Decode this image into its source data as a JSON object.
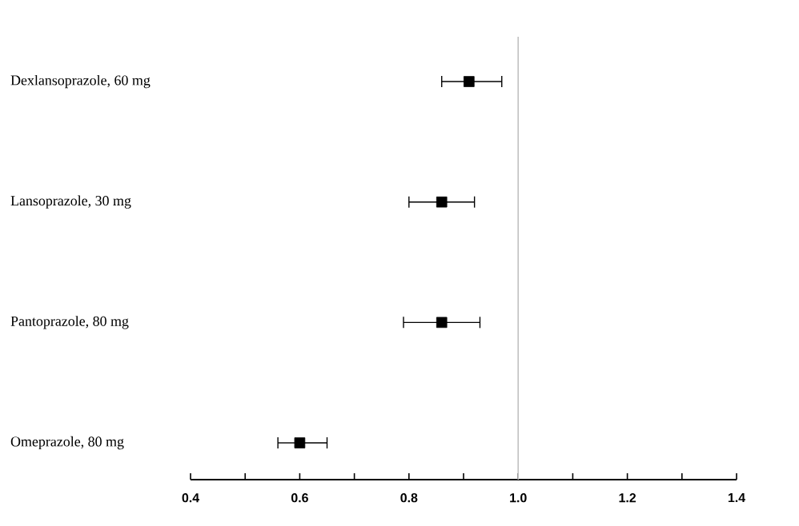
{
  "chart_data": {
    "type": "scatter",
    "orientation": "horizontal",
    "categories": [
      "Dexlansoprazole, 60 mg",
      "Lansoprazole, 30 mg",
      "Pantoprazole, 80 mg",
      "Omeprazole, 80 mg"
    ],
    "values": [
      0.91,
      0.86,
      0.86,
      0.6
    ],
    "errors": [
      [
        0.86,
        0.97
      ],
      [
        0.8,
        0.92
      ],
      [
        0.79,
        0.93
      ],
      [
        0.56,
        0.65
      ]
    ],
    "color": "#000000",
    "marker": "square",
    "xlim": [
      0.4,
      1.4
    ],
    "xticks": [
      0.4,
      {
        "value": 0.5,
        "label": null
      },
      0.6,
      {
        "value": 0.7,
        "label": null
      },
      0.8,
      {
        "value": 0.9,
        "label": null
      },
      {
        "value": 1.0,
        "label": "1.0"
      },
      {
        "value": 1.1,
        "label": null
      },
      1.2,
      {
        "value": 1.3,
        "label": null
      },
      1.4
    ],
    "ref_lines": [
      {
        "axis": "x",
        "value": 1.0,
        "color": "#c0c0c0"
      }
    ],
    "grid": false
  }
}
